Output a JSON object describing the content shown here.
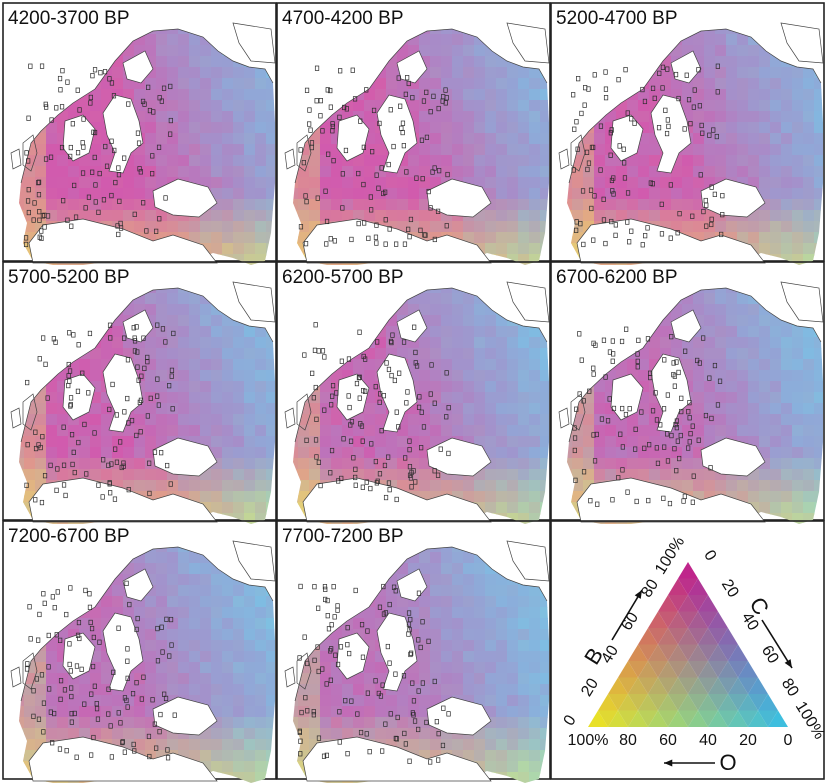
{
  "panels": [
    {
      "label": "4200-3700 BP",
      "variant": 0
    },
    {
      "label": "4700-4200 BP",
      "variant": 1
    },
    {
      "label": "5200-4700 BP",
      "variant": 2
    },
    {
      "label": "5700-5200 BP",
      "variant": 3
    },
    {
      "label": "6200-5700 BP",
      "variant": 4
    },
    {
      "label": "6700-6200 BP",
      "variant": 5
    },
    {
      "label": "7200-6700 BP",
      "variant": 6
    },
    {
      "label": "7700-7200 BP",
      "variant": 7
    }
  ],
  "legend": {
    "type": "ternary",
    "axes": [
      {
        "letter": "B",
        "ticks": [
          "0",
          "20",
          "40",
          "60",
          "80",
          "100%"
        ]
      },
      {
        "letter": "C",
        "ticks": [
          "0",
          "20",
          "40",
          "60",
          "80",
          "100%"
        ]
      },
      {
        "letter": "O",
        "ticks": [
          "100%",
          "80",
          "60",
          "40",
          "20",
          "0"
        ]
      }
    ],
    "colors": {
      "B": "#c2188c",
      "C": "#33c2e8",
      "O": "#f0e81e"
    }
  },
  "map_colors": {
    "water": "#ffffff",
    "coast": "#444444",
    "sites": "#2c2c2c"
  }
}
